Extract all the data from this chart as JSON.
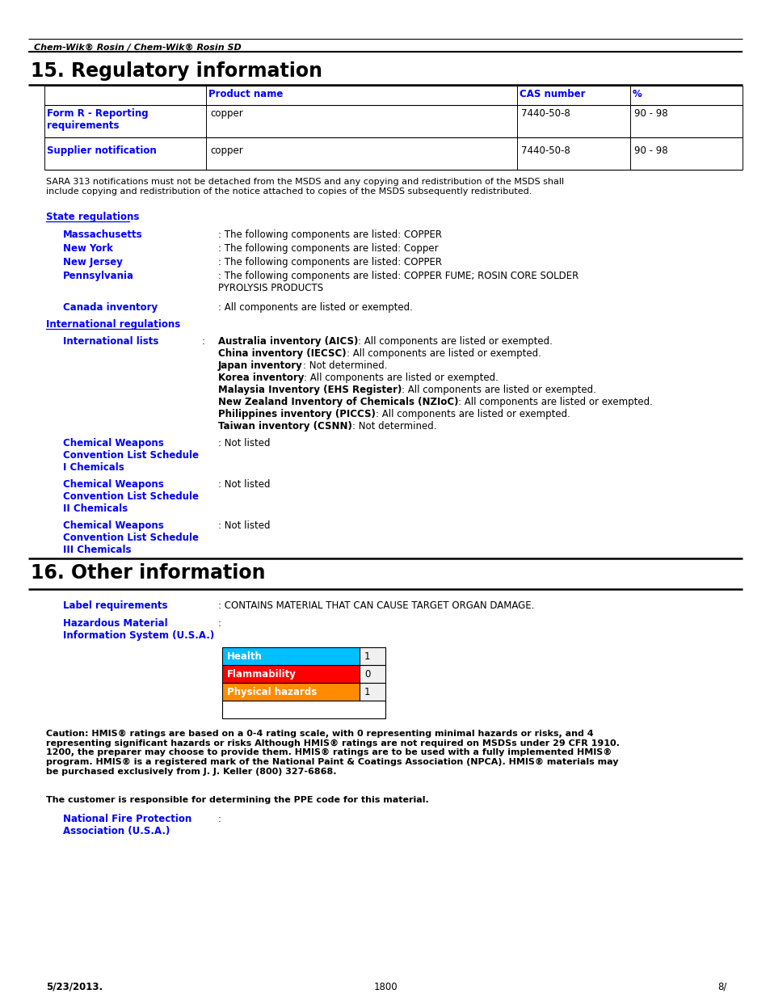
{
  "page_bg": "#ffffff",
  "header_italic": "Chem-Wik® Rosin / Chem-Wik® Rosin SD",
  "section15_title": "15. Regulatory information",
  "section16_title": "16. Other information",
  "blue_color": "#0000FF",
  "black_color": "#000000",
  "table_col_header": [
    "Product name",
    "CAS number",
    "%"
  ],
  "table_rows": [
    [
      "Form R - Reporting\nrequirements",
      "copper",
      "7440-50-8",
      "90 - 98"
    ],
    [
      "Supplier notification",
      "copper",
      "7440-50-8",
      "90 - 98"
    ]
  ],
  "sara_text": "SARA 313 notifications must not be detached from the MSDS and any copying and redistribution of the MSDS shall\ninclude copying and redistribution of the notice attached to copies of the MSDS subsequently redistributed.",
  "state_regs_label": "State regulations",
  "state_entries": [
    [
      "Massachusetts",
      "The following components are listed: COPPER"
    ],
    [
      "New York",
      "The following components are listed: Copper"
    ],
    [
      "New Jersey",
      "The following components are listed: COPPER"
    ],
    [
      "Pennsylvania",
      "The following components are listed: COPPER FUME; ROSIN CORE SOLDER\nPYROLYSIS PRODUCTS"
    ]
  ],
  "canada_label": "Canada inventory",
  "canada_value": "All components are listed or exempted.",
  "intl_regs_label": "International regulations",
  "intl_lists_label": "International lists",
  "intl_lists_value": [
    [
      "Australia inventory (AICS)",
      ": All components are listed or exempted."
    ],
    [
      "China inventory (IECSC)",
      ": All components are listed or exempted."
    ],
    [
      "Japan inventory",
      ": Not determined."
    ],
    [
      "Korea inventory",
      ": All components are listed or exempted."
    ],
    [
      "Malaysia Inventory (EHS Register)",
      ": All components are listed or exempted."
    ],
    [
      "New Zealand Inventory of Chemicals (NZIoC)",
      ": All components are listed or exempted."
    ],
    [
      "Philippines inventory (PICCS)",
      ": All components are listed or exempted."
    ],
    [
      "Taiwan inventory (CSNN)",
      ": Not determined."
    ]
  ],
  "cw_schedules": [
    [
      "Chemical Weapons\nConvention List Schedule\nI Chemicals",
      "Not listed"
    ],
    [
      "Chemical Weapons\nConvention List Schedule\nII Chemicals",
      "Not listed"
    ],
    [
      "Chemical Weapons\nConvention List Schedule\nIII Chemicals",
      "Not listed"
    ]
  ],
  "label_req_label": "Label requirements",
  "label_req_value": "CONTAINS MATERIAL THAT CAN CAUSE TARGET ORGAN DAMAGE.",
  "hazmat_label": "Hazardous Material\nInformation System (U.S.A.)",
  "hmis_rows": [
    {
      "label": "Health",
      "value": "1",
      "color": "#00BFFF"
    },
    {
      "label": "Flammability",
      "value": "0",
      "color": "#FF0000"
    },
    {
      "label": "Physical hazards",
      "value": "1",
      "color": "#FF8C00"
    }
  ],
  "caution_bold_parts": [
    "Caution: ",
    "Although",
    "MSDSs",
    "HMIS®",
    "HMIS®",
    "HMIS®",
    "HMIS®",
    "HMIS®"
  ],
  "caution_text": "Caution: HMIS® ratings are based on a 0-4 rating scale, with 0 representing minimal hazards or risks, and 4\nrepresenting significant hazards or risks Although HMIS® ratings are not required on MSDSs under 29 CFR 1910.\n1200, the preparer may choose to provide them. HMIS® ratings are to be used with a fully implemented HMIS®\nprogram. HMIS® is a registered mark of the National Paint & Coatings Association (NPCA). HMIS® materials may\nbe purchased exclusively from J. J. Keller (800) 327-6868.",
  "ppe_text": "The customer is responsible for determining the PPE code for this material.",
  "nfpa_label": "National Fire Protection\nAssociation (U.S.A.)",
  "footer_left": "5/23/2013.",
  "footer_center": "1800",
  "footer_right": "8/"
}
